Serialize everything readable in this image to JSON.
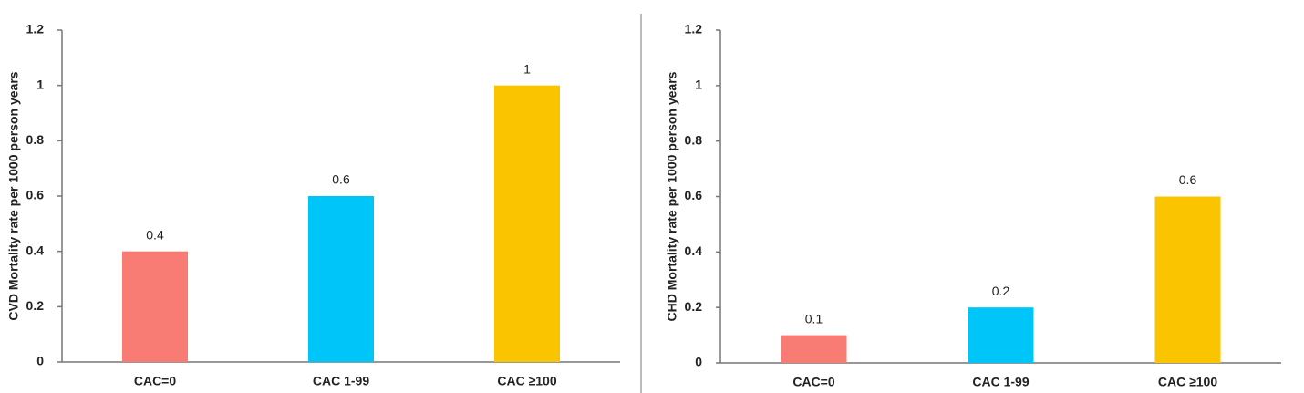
{
  "chart_data": [
    {
      "type": "bar",
      "y_label": "CVD Mortality rate per 1000 person years",
      "categories": [
        "CAC=0",
        "CAC 1-99",
        "CAC ≥100"
      ],
      "values": [
        0.4,
        0.6,
        1
      ],
      "colors": [
        "#f87b74",
        "#00c5f8",
        "#fbc400"
      ],
      "ylim": [
        0,
        1.2
      ],
      "yticks": [
        0,
        0.2,
        0.4,
        0.6,
        0.8,
        1,
        1.2
      ]
    },
    {
      "type": "bar",
      "y_label": "CHD Mortality rate per 1000 person years",
      "categories": [
        "CAC=0",
        "CAC 1-99",
        "CAC ≥100"
      ],
      "values": [
        0.1,
        0.2,
        0.6
      ],
      "colors": [
        "#f87b74",
        "#00c5f8",
        "#fbc400"
      ],
      "ylim": [
        0,
        1.2
      ],
      "yticks": [
        0,
        0.2,
        0.4,
        0.6,
        0.8,
        1,
        1.2
      ]
    }
  ]
}
